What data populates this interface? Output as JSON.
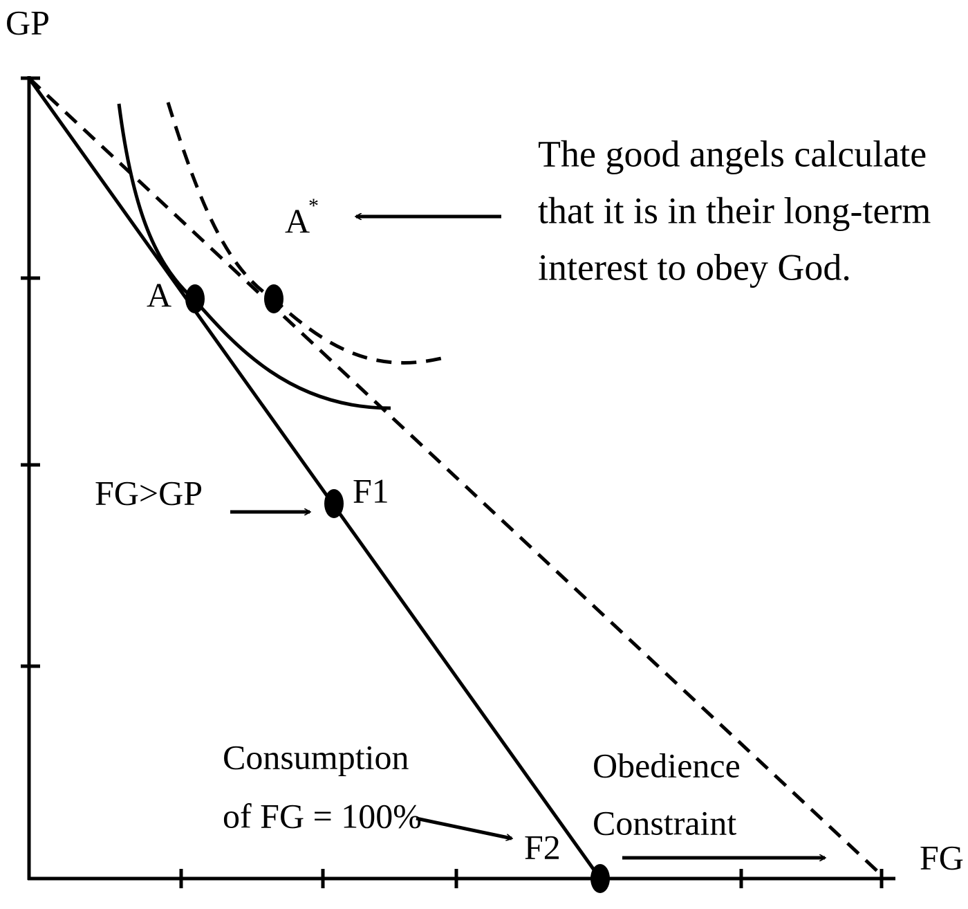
{
  "axes": {
    "y_label": "GP",
    "x_label": "FG"
  },
  "points": [
    {
      "label": "A"
    },
    {
      "label": "A",
      "superscript": "*"
    },
    {
      "label": "F1"
    },
    {
      "label": "F2"
    }
  ],
  "annotations": {
    "angels": [
      "The good angels calculate",
      "that it is in their long-term",
      "interest to obey God."
    ],
    "fg_gt_gp": "FG>GP",
    "consumption": [
      "Consumption",
      "of FG = 100%"
    ],
    "obedience": [
      "Obedience",
      "Constraint"
    ]
  }
}
